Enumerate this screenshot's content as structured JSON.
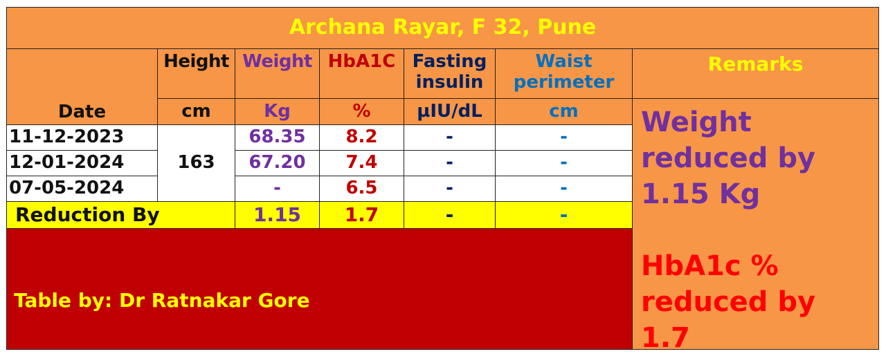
{
  "title": "Archana Rayar, F 32, Pune",
  "headers": {
    "date": "Date",
    "height": "Height",
    "height_unit": "cm",
    "weight": "Weight",
    "weight_unit": "Kg",
    "hba1c": "HbA1C",
    "hba1c_unit": "%",
    "fasting_line1": "Fasting",
    "fasting_line2": "insulin",
    "fasting_unit": "µIU/dL",
    "waist_line1": "Waist",
    "waist_line2": "perimeter",
    "waist_unit": "cm",
    "remarks": "Remarks"
  },
  "height_value": "163",
  "rows": [
    {
      "date": "11-12-2023",
      "weight": "68.35",
      "hba1c": "8.2",
      "fasting": "-",
      "waist": "-"
    },
    {
      "date": "12-01-2024",
      "weight": "67.20",
      "hba1c": "7.4",
      "fasting": "-",
      "waist": "-"
    },
    {
      "date": "07-05-2024",
      "weight": "-",
      "hba1c": "6.5",
      "fasting": "-",
      "waist": "-"
    }
  ],
  "reduction": {
    "label": "Reduction By",
    "weight": "1.15",
    "hba1c": "1.7",
    "fasting": "-",
    "waist": "-"
  },
  "credit": "Table by: Dr Ratnakar Gore",
  "remarks": {
    "weight_line1": "Weight",
    "weight_line2": "reduced by",
    "weight_line3": "1.15 Kg",
    "hba1c_line1": "HbA1c %",
    "hba1c_line2": "reduced by",
    "hba1c_line3": "1.7"
  },
  "colors": {
    "orange": "#F79646",
    "yellow": "#FFFF00",
    "purple": "#7030A0",
    "dark_red": "#C00000",
    "navy": "#002060",
    "blue": "#0070C0",
    "red": "#FF0000"
  }
}
